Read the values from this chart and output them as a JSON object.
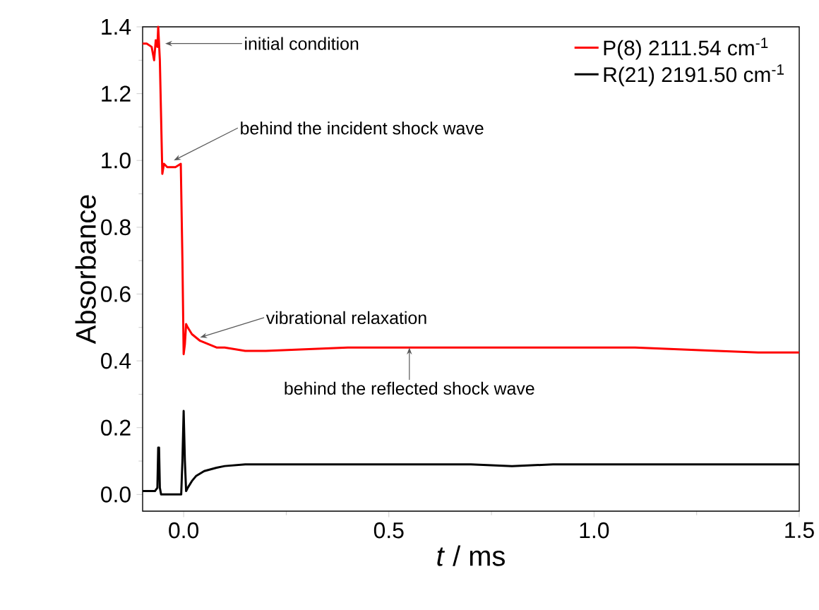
{
  "chart_data": {
    "type": "line",
    "xlabel": "*t* / ms",
    "ylabel": "Absorbance",
    "xlim": [
      -0.1,
      1.5
    ],
    "ylim": [
      -0.05,
      1.4
    ],
    "xticks": [
      {
        "value": 0,
        "label": "0.0"
      },
      {
        "value": 0.5,
        "label": "0.5"
      },
      {
        "value": 1,
        "label": "1.0"
      },
      {
        "value": 1.5,
        "label": "1.5"
      }
    ],
    "yticks": [
      {
        "value": 0,
        "label": "0.0"
      },
      {
        "value": 0.2,
        "label": "0.2"
      },
      {
        "value": 0.4,
        "label": "0.4"
      },
      {
        "value": 0.6,
        "label": "0.6"
      },
      {
        "value": 0.8,
        "label": "0.8"
      },
      {
        "value": 1,
        "label": "1.0"
      },
      {
        "value": 1.2,
        "label": "1.2"
      },
      {
        "value": 1.4,
        "label": "1.4"
      }
    ],
    "grid": false,
    "legend": "top right",
    "marker": "none",
    "line_style": "solid",
    "series": [
      {
        "name": "P(8)   2111.54 cm$^{-1}$",
        "color": "#ff0000",
        "x": [
          -0.1,
          -0.09,
          -0.078,
          -0.072,
          -0.068,
          -0.064,
          -0.062,
          -0.058,
          -0.052,
          -0.048,
          -0.04,
          -0.02,
          -0.007,
          -0.003,
          0.0,
          0.003,
          0.006,
          0.01,
          0.02,
          0.04,
          0.06,
          0.08,
          0.1,
          0.15,
          0.2,
          0.3,
          0.4,
          0.5,
          0.6,
          0.7,
          0.8,
          0.9,
          1.0,
          1.1,
          1.2,
          1.3,
          1.4,
          1.5
        ],
        "values": [
          1.35,
          1.35,
          1.34,
          1.3,
          1.36,
          1.34,
          1.4,
          1.3,
          0.96,
          0.99,
          0.98,
          0.98,
          0.99,
          0.7,
          0.42,
          0.45,
          0.51,
          0.5,
          0.48,
          0.46,
          0.45,
          0.44,
          0.44,
          0.43,
          0.43,
          0.435,
          0.44,
          0.44,
          0.44,
          0.44,
          0.44,
          0.44,
          0.44,
          0.44,
          0.435,
          0.43,
          0.425,
          0.425
        ]
      },
      {
        "name": "R(21) 2191.50 cm$^{-1}$",
        "color": "#000000",
        "x": [
          -0.1,
          -0.07,
          -0.064,
          -0.062,
          -0.06,
          -0.058,
          -0.055,
          -0.03,
          -0.006,
          -0.003,
          0.0,
          0.003,
          0.006,
          0.01,
          0.02,
          0.03,
          0.05,
          0.08,
          0.1,
          0.15,
          0.2,
          0.3,
          0.4,
          0.5,
          0.6,
          0.7,
          0.8,
          0.9,
          1.0,
          1.1,
          1.2,
          1.3,
          1.4,
          1.5
        ],
        "values": [
          0.01,
          0.01,
          0.02,
          0.14,
          0.14,
          0.02,
          0.0,
          0.0,
          0.0,
          0.1,
          0.25,
          0.1,
          0.01,
          0.02,
          0.04,
          0.055,
          0.07,
          0.08,
          0.085,
          0.09,
          0.09,
          0.09,
          0.09,
          0.09,
          0.09,
          0.09,
          0.085,
          0.09,
          0.09,
          0.09,
          0.09,
          0.09,
          0.09,
          0.09
        ]
      }
    ],
    "annotations": [
      {
        "text": "initial condition",
        "x": -0.045,
        "y": 1.35
      },
      {
        "text": "behind the incident shock wave",
        "x": -0.024,
        "y": 1.0
      },
      {
        "text": "vibrational relaxation",
        "x": 0.04,
        "y": 0.47
      },
      {
        "text": "behind the reflected shock wave",
        "x": 0.55,
        "y": 0.44
      }
    ]
  }
}
